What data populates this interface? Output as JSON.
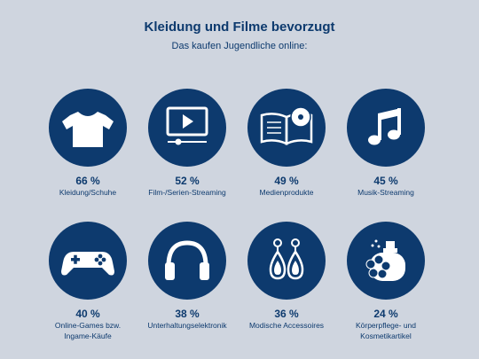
{
  "header": {
    "title": "Kleidung und Filme bevorzugt",
    "subtitle": "Das kaufen Jugendliche online:"
  },
  "colors": {
    "background": "#cfd5df",
    "accent": "#0d3a6e",
    "icon": "#ffffff"
  },
  "chart_data": {
    "type": "table",
    "unit": "%",
    "items": [
      {
        "value": 66,
        "value_label": "66 %",
        "label": "Kleidung/Schuhe",
        "icon": "tshirt-icon"
      },
      {
        "value": 52,
        "value_label": "52 %",
        "label": "Film-/Serien-Streaming",
        "icon": "video-player-icon"
      },
      {
        "value": 49,
        "value_label": "49 %",
        "label": "Medienprodukte",
        "icon": "book-disc-icon"
      },
      {
        "value": 45,
        "value_label": "45 %",
        "label": "Musik-Streaming",
        "icon": "music-note-icon"
      },
      {
        "value": 40,
        "value_label": "40 %",
        "label": "Online-Games bzw.",
        "label2": "Ingame-Käufe",
        "icon": "gamepad-icon"
      },
      {
        "value": 38,
        "value_label": "38 %",
        "label": "Unterhaltungselektronik",
        "icon": "headphones-icon"
      },
      {
        "value": 36,
        "value_label": "36 %",
        "label": "Modische Accessoires",
        "icon": "earrings-icon"
      },
      {
        "value": 24,
        "value_label": "24 %",
        "label": "Körperpflege- und",
        "label2": "Kosmetikartikel",
        "icon": "perfume-icon"
      }
    ]
  }
}
